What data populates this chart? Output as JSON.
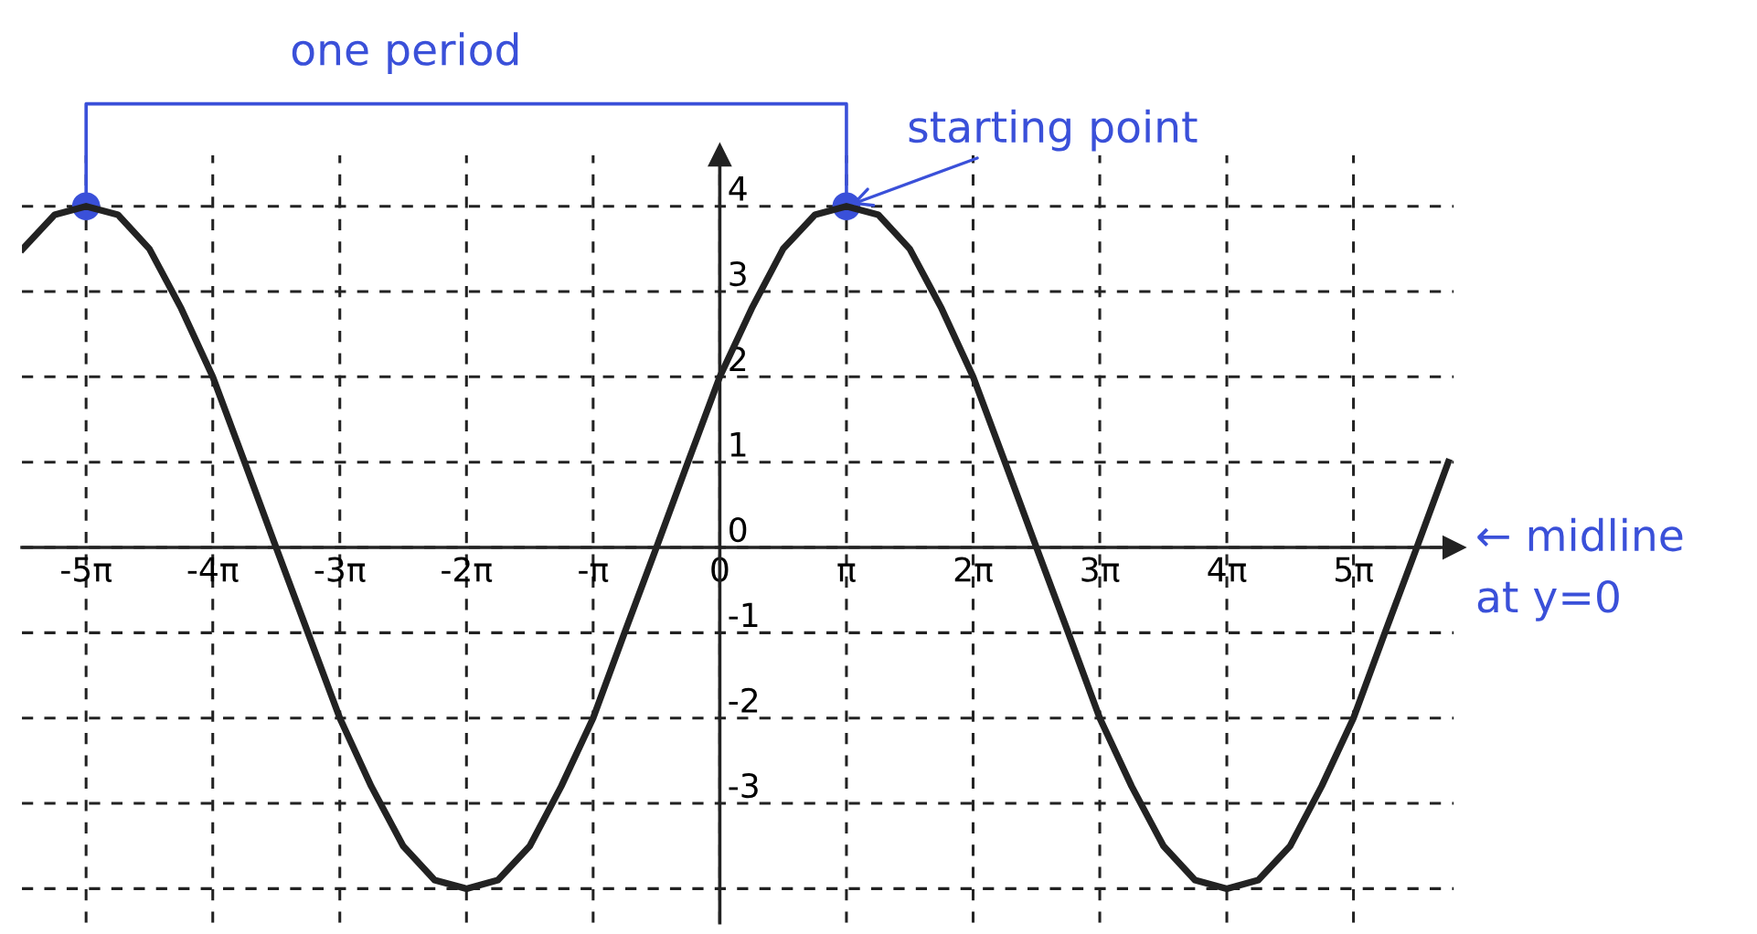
{
  "chart_data": {
    "type": "line",
    "series": [
      {
        "color": "#222222",
        "x": [
          -17.28,
          -16.49,
          -15.71,
          -14.92,
          -14.14,
          -13.35,
          -12.57,
          -11.78,
          -11.0,
          -10.21,
          -9.42,
          -8.64,
          -7.85,
          -7.07,
          -6.28,
          -5.5,
          -4.71,
          -3.93,
          -3.14,
          -2.36,
          -1.57,
          -0.79,
          0,
          0.79,
          1.57,
          2.36,
          3.14,
          3.93,
          4.71,
          5.5,
          6.28,
          7.07,
          7.85,
          8.64,
          9.42,
          10.21,
          11.0,
          11.78,
          12.57,
          13.35,
          14.14,
          14.92,
          15.71,
          16.49,
          17.28,
          18.06
        ],
        "values": [
          3.5,
          3.9,
          4,
          3.9,
          3.5,
          2.8,
          2,
          1.0,
          0,
          -1.0,
          -2,
          -2.8,
          -3.5,
          -3.9,
          -4,
          -3.9,
          -3.5,
          -2.8,
          -2,
          -1.0,
          0,
          1.0,
          2,
          2.8,
          3.5,
          3.9,
          4,
          3.9,
          3.5,
          2.8,
          2,
          1.0,
          0,
          -1.0,
          -2,
          -2.8,
          -3.5,
          -3.9,
          -4,
          -3.9,
          -3.5,
          -2.8,
          -2,
          -1.0,
          0,
          1.0
        ]
      },
      {
        "type": "scatter",
        "color": "#3a50d9",
        "marker": "circle",
        "x": [
          -15.71,
          3.14
        ],
        "values": [
          4,
          4
        ]
      }
    ],
    "xlim": [
      -17.3,
      18.2
    ],
    "ylim": [
      -4.4,
      4.6
    ],
    "xticks": [
      {
        "value": -15.71,
        "label": "-5π"
      },
      {
        "value": -12.57,
        "label": "-4π"
      },
      {
        "value": -9.42,
        "label": "-3π"
      },
      {
        "value": -6.28,
        "label": "-2π"
      },
      {
        "value": -3.14,
        "label": "-π"
      },
      0,
      {
        "value": 3.14,
        "label": "π"
      },
      {
        "value": 6.28,
        "label": "2π"
      },
      {
        "value": 9.42,
        "label": "3π"
      },
      {
        "value": 12.57,
        "label": "4π"
      },
      {
        "value": 15.71,
        "label": "5π"
      }
    ],
    "yticks": [
      {
        "value": -4,
        "label": null
      },
      -3,
      -2,
      -1,
      0,
      1,
      2,
      3,
      4
    ],
    "grid": true,
    "line_style": "solid",
    "annotations": [
      "one period",
      {
        "text": "starting point",
        "x": 3.14,
        "y": 4
      },
      "← midline\nat y=0"
    ]
  }
}
